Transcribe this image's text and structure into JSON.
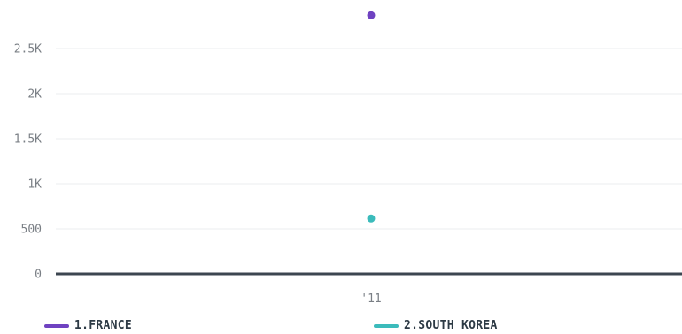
{
  "chart_data": {
    "type": "scatter",
    "categories": [
      "'11"
    ],
    "series": [
      {
        "name": "1.FRANCE",
        "color": "#6f42c1",
        "values": [
          2870
        ]
      },
      {
        "name": "2.SOUTH KOREA",
        "color": "#3bbbbb",
        "values": [
          615
        ]
      }
    ],
    "y_ticks": [
      {
        "value": 0,
        "label": "0"
      },
      {
        "value": 500,
        "label": "500"
      },
      {
        "value": 1000,
        "label": "1K"
      },
      {
        "value": 1500,
        "label": "1.5K"
      },
      {
        "value": 2000,
        "label": "2K"
      },
      {
        "value": 2500,
        "label": "2.5K"
      }
    ],
    "ylim": [
      0,
      3000
    ],
    "grid": true,
    "legend_position": "bottom",
    "xlabel": "",
    "ylabel": "",
    "title": ""
  },
  "colors": {
    "grid": "#ebedef",
    "baseline": "#3c4650",
    "tick_text": "#7a7f85"
  }
}
